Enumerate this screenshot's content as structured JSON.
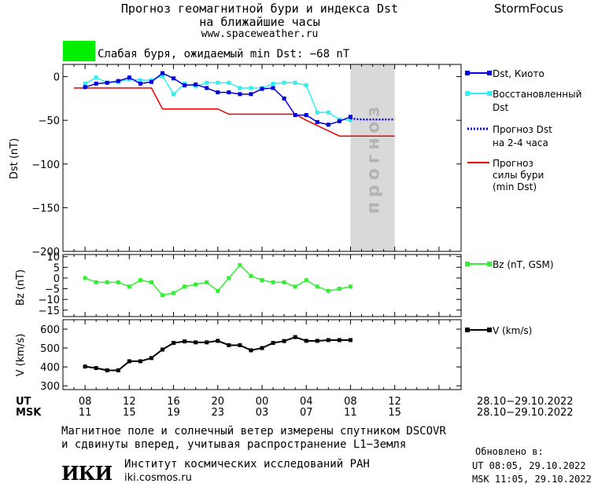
{
  "header": {
    "title_line1": "Прогноз геомагнитной бури и индекса Dst",
    "title_line2": "на ближайшие часы",
    "website": "www.spaceweather.ru",
    "brand": "StormFocus"
  },
  "alert": {
    "text": "Слабая буря, ожидаемый min Dst: −68 nT",
    "color": "#00ee00"
  },
  "chart_data": [
    {
      "type": "line",
      "ylabel": "Dst (nT)",
      "ylim": [
        -200,
        14
      ],
      "yticks": [
        0,
        -50,
        -100,
        -150,
        -200
      ],
      "ytick_labels": [
        "0",
        "−50",
        "−100",
        "−150",
        "−200"
      ],
      "forecast_band_label": "прогноз",
      "forecast_band_hours": [
        8,
        12
      ],
      "x_hours": [
        -8,
        -7,
        -6,
        -5,
        -4,
        -3,
        -2,
        -1,
        0,
        1,
        2,
        3,
        4,
        5,
        6,
        7,
        8,
        9,
        10,
        11,
        12,
        13,
        14,
        15,
        16,
        17,
        18,
        19,
        20,
        21,
        22,
        23,
        24,
        25,
        26,
        27,
        28,
        29,
        30,
        31
      ],
      "series": [
        {
          "name": "Dst, Киото",
          "color": "#0000dd",
          "x": [
            8,
            9,
            10,
            11,
            12,
            13,
            14,
            15,
            16,
            17,
            18,
            19,
            20,
            21,
            22,
            23,
            24,
            25,
            26,
            27,
            28,
            29,
            30,
            31,
            32
          ],
          "y": [
            -12,
            -8,
            -7,
            -5,
            -1,
            -8,
            -6,
            4,
            -2,
            -10,
            -9,
            -13,
            -18,
            -18,
            -20,
            -20,
            -14,
            -13,
            -25,
            -44,
            -44,
            -52,
            -55,
            -51,
            -46
          ]
        },
        {
          "name": "Восстановленный Dst",
          "color": "#33eeee",
          "x": [
            8,
            9,
            10,
            11,
            12,
            13,
            14,
            15,
            16,
            17,
            18,
            19,
            20,
            21,
            22,
            23,
            24,
            25,
            26,
            27,
            28,
            29,
            30,
            31,
            32
          ],
          "y": [
            -8,
            -1,
            -7,
            -6,
            -3,
            -4,
            -4,
            1,
            -20,
            -8,
            -11,
            -7,
            -7,
            -7,
            -13,
            -13,
            -13,
            -8,
            -7,
            -7,
            -10,
            -41,
            -41,
            -49,
            -50
          ]
        },
        {
          "name": "Прогноз Dst на 2-4 часа",
          "color": "#0000dd",
          "x": [
            32,
            33,
            34,
            35,
            36
          ],
          "y": [
            -48,
            -49,
            -49,
            -49,
            -49
          ]
        },
        {
          "name": "Прогноз силы бури (min Dst)",
          "color": "#ee0000",
          "x": [
            7,
            14,
            15,
            20,
            21,
            27,
            28,
            30,
            31,
            36
          ],
          "y": [
            -13,
            -13,
            -37,
            -37,
            -43,
            -43,
            -50,
            -62,
            -68,
            -68
          ]
        }
      ]
    },
    {
      "type": "line",
      "ylabel": "Bz (nT)",
      "ylim": [
        -18,
        11
      ],
      "yticks": [
        10,
        5,
        0,
        -5,
        -10,
        -15
      ],
      "ytick_labels": [
        "10",
        "5",
        "0",
        "−5",
        "−10",
        "−15"
      ],
      "series": [
        {
          "name": "Bz (nT, GSM)",
          "color": "#33ee33",
          "x": [
            8,
            9,
            10,
            11,
            12,
            13,
            14,
            15,
            16,
            17,
            18,
            19,
            20,
            21,
            22,
            23,
            24,
            25,
            26,
            27,
            28,
            29,
            30,
            31,
            32
          ],
          "y": [
            0,
            -2,
            -2,
            -2,
            -4,
            -1,
            -2,
            -8,
            -7,
            -4,
            -3,
            -2,
            -6,
            0,
            6,
            1,
            -1,
            -2,
            -2,
            -4,
            -1,
            -4,
            -6,
            -5,
            -4
          ]
        }
      ]
    },
    {
      "type": "line",
      "ylabel": "V (km/s)",
      "ylim": [
        280,
        650
      ],
      "yticks": [
        600,
        500,
        400,
        300
      ],
      "ytick_labels": [
        "600",
        "500",
        "400",
        "300"
      ],
      "series": [
        {
          "name": "V (km/s)",
          "color": "#000000",
          "x": [
            8,
            9,
            10,
            11,
            12,
            13,
            14,
            15,
            16,
            17,
            18,
            19,
            20,
            21,
            22,
            23,
            24,
            25,
            26,
            27,
            28,
            29,
            30,
            31,
            32
          ],
          "y": [
            402,
            394,
            382,
            382,
            430,
            430,
            447,
            492,
            527,
            535,
            530,
            530,
            538,
            515,
            515,
            488,
            500,
            527,
            537,
            558,
            538,
            538,
            542,
            542,
            542
          ]
        }
      ]
    }
  ],
  "axis": {
    "ut_label": "UT",
    "msk_label": "MSK",
    "ut_ticks": [
      "08",
      "12",
      "16",
      "20",
      "00",
      "04",
      "08",
      "12"
    ],
    "msk_ticks": [
      "11",
      "15",
      "19",
      "23",
      "03",
      "07",
      "11",
      "15"
    ],
    "ut_range": "28.10−29.10.2022",
    "msk_range": "28.10−29.10.2022"
  },
  "legend": {
    "dst_kyoto": "Dst, Киото",
    "recon_1": "Восстановленный",
    "recon_2": "Dst",
    "forecast_1": "Прогноз Dst",
    "forecast_2": "на 2-4 часа",
    "storm_1": "Прогноз",
    "storm_2": "силы бури",
    "storm_3": "(min Dst)",
    "bz": "Bz (nT, GSM)",
    "v": "V (km/s)"
  },
  "footer": {
    "note_line1": "Магнитное поле и солнечный ветер измерены спутником DSCOVR",
    "note_line2": "и сдвинуты вперед, учитывая распространение L1−Земля",
    "logo": "ИКИ",
    "institute": "Институт космических исследований РАН",
    "institute_web": "iki.cosmos.ru",
    "updated_label": "Обновлено в:",
    "updated_ut": "UT  08:05, 29.10.2022",
    "updated_msk": "MSK 11:05, 29.10.2022"
  }
}
